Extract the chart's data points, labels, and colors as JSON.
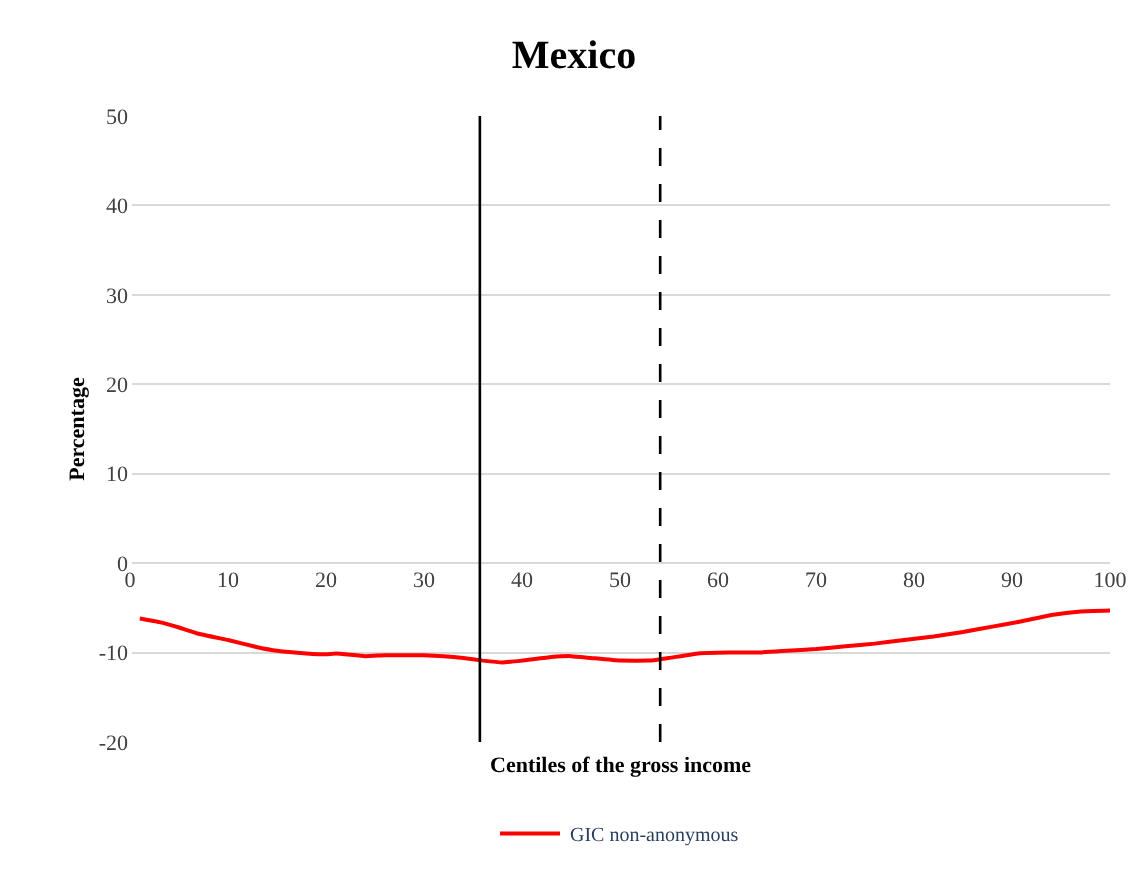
{
  "chart_data": {
    "type": "line",
    "title": "Mexico",
    "xlabel": "Centiles of the gross income",
    "ylabel": "Percentage",
    "x": [
      1,
      3,
      5,
      7,
      10,
      13,
      15,
      18,
      20,
      21,
      24,
      26,
      30,
      32,
      34,
      36,
      38,
      40,
      43,
      45,
      47,
      50,
      53,
      55,
      58,
      61,
      64,
      67,
      70,
      73,
      76,
      79,
      82,
      85,
      88,
      91,
      94,
      97,
      100
    ],
    "series": [
      {
        "name": "GIC non-anonymous",
        "color": "#ff0000",
        "values": [
          -6.2,
          -6.6,
          -7.2,
          -7.9,
          -8.6,
          -9.4,
          -9.8,
          -10.1,
          -10.2,
          -10.1,
          -10.4,
          -10.3,
          -10.3,
          -10.4,
          -10.6,
          -10.9,
          -11.1,
          -10.9,
          -10.5,
          -10.4,
          -10.6,
          -10.9,
          -10.9,
          -10.6,
          -10.1,
          -10.0,
          -10.0,
          -9.8,
          -9.6,
          -9.3,
          -9.0,
          -8.6,
          -8.2,
          -7.7,
          -7.1,
          -6.5,
          -5.8,
          -5.4,
          -5.3
        ]
      }
    ],
    "xlim": [
      0,
      100
    ],
    "xticks": [
      0,
      10,
      20,
      30,
      40,
      50,
      60,
      70,
      80,
      90,
      100
    ],
    "ylim": [
      -20,
      50
    ],
    "yticks": [
      -20,
      -10,
      0,
      10,
      20,
      30,
      40,
      50
    ],
    "ref_lines": [
      {
        "axis": "x",
        "value": 35.7,
        "color": "#000000",
        "line_style": "solid"
      },
      {
        "axis": "x",
        "value": 54.1,
        "color": "#000000",
        "line_style": "dashed"
      }
    ],
    "grid": "y",
    "legend": "bottom",
    "marker": "none",
    "line_style": "solid"
  }
}
